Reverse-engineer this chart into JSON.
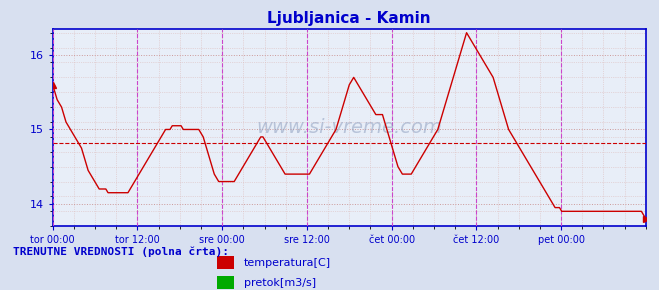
{
  "title": "Ljubljanica - Kamin",
  "title_color": "#0000cc",
  "bg_color": "#d8e0f0",
  "plot_bg_color": "#e8eef8",
  "xlabel_ticks": [
    "tor 00:00",
    "tor 12:00",
    "sre 00:00",
    "sre 12:00",
    "čet 00:00",
    "čet 12:00",
    "pet 00:00"
  ],
  "yticks": [
    14,
    15,
    16
  ],
  "ylim": [
    13.7,
    16.35
  ],
  "xlim": [
    0,
    336
  ],
  "tick_positions_x": [
    0,
    48,
    96,
    144,
    192,
    240,
    288
  ],
  "avg_line_y": 14.82,
  "line_color": "#cc0000",
  "avg_line_color": "#cc0000",
  "grid_color_major": "#cc9999",
  "grid_color_minor": "#ddbbbb",
  "vline_color": "#cc44cc",
  "axis_color": "#0000cc",
  "watermark_color": "#8899bb",
  "legend_title": "TRENUTNE VREDNOSTI (polna črta):",
  "legend_title_color": "#0000cc",
  "legend_items": [
    {
      "label": "temperatura[C]",
      "color": "#cc0000"
    },
    {
      "label": "pretok[m3/s]",
      "color": "#00aa00"
    }
  ],
  "temperature_data": [
    15.6,
    15.5,
    15.4,
    15.35,
    15.3,
    15.2,
    15.1,
    15.05,
    15.0,
    14.95,
    14.9,
    14.85,
    14.8,
    14.75,
    14.65,
    14.55,
    14.45,
    14.4,
    14.35,
    14.3,
    14.25,
    14.2,
    14.2,
    14.2,
    14.2,
    14.15,
    14.15,
    14.15,
    14.15,
    14.15,
    14.15,
    14.15,
    14.15,
    14.15,
    14.15,
    14.2,
    14.25,
    14.3,
    14.35,
    14.4,
    14.45,
    14.5,
    14.55,
    14.6,
    14.65,
    14.7,
    14.75,
    14.8,
    14.85,
    14.9,
    14.95,
    15.0,
    15.0,
    15.0,
    15.05,
    15.05,
    15.05,
    15.05,
    15.05,
    15.0,
    15.0,
    15.0,
    15.0,
    15.0,
    15.0,
    15.0,
    15.0,
    14.95,
    14.9,
    14.8,
    14.7,
    14.6,
    14.5,
    14.4,
    14.35,
    14.3,
    14.3,
    14.3,
    14.3,
    14.3,
    14.3,
    14.3,
    14.3,
    14.35,
    14.4,
    14.45,
    14.5,
    14.55,
    14.6,
    14.65,
    14.7,
    14.75,
    14.8,
    14.85,
    14.9,
    14.9,
    14.85,
    14.8,
    14.75,
    14.7,
    14.65,
    14.6,
    14.55,
    14.5,
    14.45,
    14.4,
    14.4,
    14.4,
    14.4,
    14.4,
    14.4,
    14.4,
    14.4,
    14.4,
    14.4,
    14.4,
    14.4,
    14.45,
    14.5,
    14.55,
    14.6,
    14.65,
    14.7,
    14.75,
    14.8,
    14.85,
    14.9,
    14.95,
    15.0,
    15.1,
    15.2,
    15.3,
    15.4,
    15.5,
    15.6,
    15.65,
    15.7,
    15.65,
    15.6,
    15.55,
    15.5,
    15.45,
    15.4,
    15.35,
    15.3,
    15.25,
    15.2,
    15.2,
    15.2,
    15.2,
    15.1,
    15.0,
    14.9,
    14.8,
    14.7,
    14.6,
    14.5,
    14.45,
    14.4,
    14.4,
    14.4,
    14.4,
    14.4,
    14.45,
    14.5,
    14.55,
    14.6,
    14.65,
    14.7,
    14.75,
    14.8,
    14.85,
    14.9,
    14.95,
    15.0,
    15.1,
    15.2,
    15.3,
    15.4,
    15.5,
    15.6,
    15.7,
    15.8,
    15.9,
    16.0,
    16.1,
    16.2,
    16.3,
    16.25,
    16.2,
    16.15,
    16.1,
    16.05,
    16.0,
    15.95,
    15.9,
    15.85,
    15.8,
    15.75,
    15.7,
    15.6,
    15.5,
    15.4,
    15.3,
    15.2,
    15.1,
    15.0,
    14.95,
    14.9,
    14.85,
    14.8,
    14.75,
    14.7,
    14.65,
    14.6,
    14.55,
    14.5,
    14.45,
    14.4,
    14.35,
    14.3,
    14.25,
    14.2,
    14.15,
    14.1,
    14.05,
    14.0,
    13.95,
    13.95,
    13.95,
    13.9,
    13.9,
    13.9,
    13.9,
    13.9,
    13.9,
    13.9,
    13.9,
    13.9,
    13.9,
    13.9,
    13.9,
    13.9,
    13.9,
    13.9,
    13.9,
    13.9,
    13.9,
    13.9,
    13.9,
    13.9,
    13.9,
    13.9,
    13.9,
    13.9,
    13.9,
    13.9,
    13.9,
    13.9,
    13.9,
    13.9,
    13.9,
    13.9,
    13.9,
    13.9,
    13.9,
    13.9,
    13.85,
    13.8
  ]
}
